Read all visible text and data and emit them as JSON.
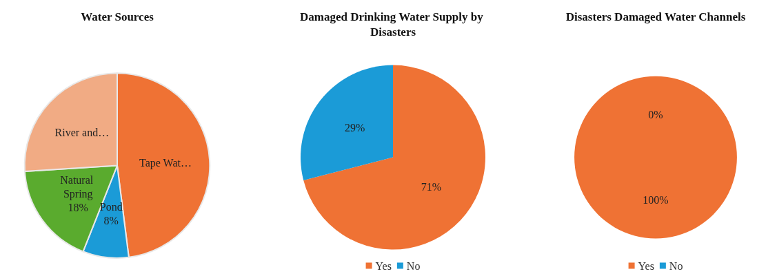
{
  "chart_data": [
    {
      "type": "pie",
      "title": "Water Sources",
      "categories": [
        "Tape Wat…",
        "Pond",
        "Natural Spring",
        "River and…"
      ],
      "values": [
        48,
        8,
        18,
        26
      ],
      "colors": [
        "#ef7234",
        "#1b9bd7",
        "#5aab2e",
        "#f1ab84"
      ],
      "value_labels": [
        null,
        "8%",
        "18%",
        null
      ],
      "legend": false
    },
    {
      "type": "pie",
      "title": "Damaged Drinking Water Supply by Disasters",
      "categories": [
        "Yes",
        "No"
      ],
      "values": [
        71,
        29
      ],
      "colors": [
        "#ef7234",
        "#1b9bd7"
      ],
      "value_labels": [
        "71%",
        "29%"
      ],
      "legend": "bottom"
    },
    {
      "type": "pie",
      "title": "Disasters Damaged Water Channels",
      "categories": [
        "Yes",
        "No"
      ],
      "values": [
        100,
        0
      ],
      "colors": [
        "#ef7234",
        "#1b9bd7"
      ],
      "value_labels": [
        "100%",
        "0%"
      ],
      "legend": "bottom"
    }
  ]
}
